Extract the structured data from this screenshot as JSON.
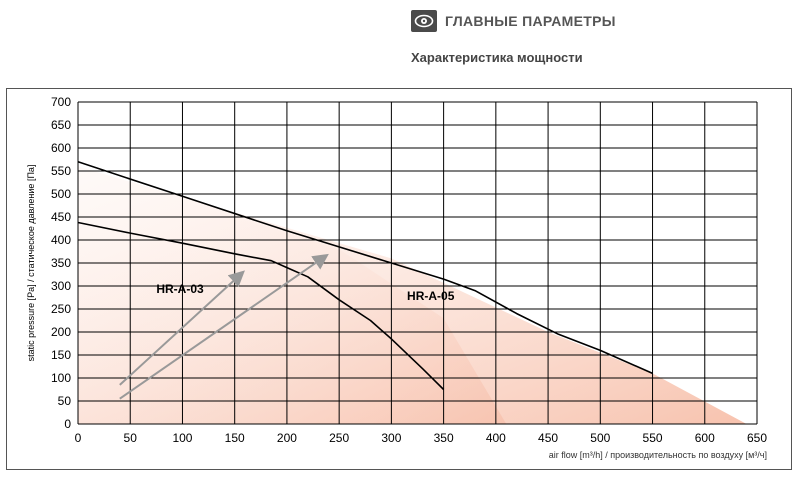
{
  "header": {
    "section_title": "ГЛАВНЫЕ ПАРАМЕТРЫ",
    "subtitle": "Характеристика мощности",
    "icon": "eye-icon"
  },
  "chart_data": {
    "type": "line",
    "title": "",
    "xlabel": "air flow [m³/h] / производительность по воздуху [м³/ч]",
    "ylabel": "static pressure [Pa] / статическое давление [Па]",
    "xlim": [
      0,
      650
    ],
    "ylim": [
      0,
      700
    ],
    "x_ticks": [
      0,
      50,
      100,
      150,
      200,
      250,
      300,
      350,
      400,
      450,
      500,
      550,
      600,
      650
    ],
    "y_ticks": [
      0,
      50,
      100,
      150,
      200,
      250,
      300,
      350,
      400,
      450,
      500,
      550,
      600,
      650,
      700
    ],
    "grid": true,
    "series": [
      {
        "name": "HR-A-03",
        "x": [
          0,
          50,
          100,
          150,
          185,
          200,
          220,
          250,
          280,
          300,
          330,
          350
        ],
        "y": [
          438,
          415,
          393,
          370,
          355,
          340,
          320,
          270,
          225,
          185,
          120,
          75
        ],
        "fill_to": [
          [
            0,
            550
          ],
          [
            150,
            450
          ],
          [
            250,
            380
          ],
          [
            350,
            230
          ],
          [
            410,
            0
          ]
        ]
      },
      {
        "name": "HR-A-05",
        "x": [
          0,
          100,
          200,
          300,
          350,
          380,
          420,
          460,
          500,
          550
        ],
        "y": [
          570,
          495,
          420,
          350,
          315,
          290,
          240,
          195,
          160,
          110
        ],
        "fill_to": [
          [
            0,
            560
          ],
          [
            300,
            360
          ],
          [
            450,
            200
          ],
          [
            550,
            110
          ],
          [
            640,
            0
          ]
        ]
      }
    ],
    "annotations": [
      {
        "text": "HR-A-03",
        "x": 75,
        "y": 285
      },
      {
        "text": "HR-A-05",
        "x": 315,
        "y": 270
      }
    ],
    "arrows": [
      {
        "from": [
          40,
          85
        ],
        "to": [
          157,
          328
        ]
      },
      {
        "from": [
          40,
          55
        ],
        "to": [
          237,
          365
        ]
      }
    ],
    "colors": {
      "curve": "#000000",
      "arrow": "#999999",
      "fill_light": "#fde6dc",
      "fill_dark": "#f6b9a2"
    }
  }
}
